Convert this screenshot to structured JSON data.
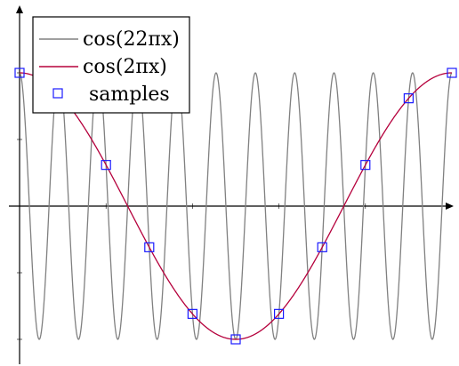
{
  "chart_data": {
    "type": "line",
    "title": "",
    "xlabel": "",
    "ylabel": "",
    "xlim": [
      0,
      1
    ],
    "ylim": [
      -1,
      1
    ],
    "grid": false,
    "legend_position": "top-left",
    "series": [
      {
        "name": "cos(22πx)",
        "kind": "line",
        "color": "#808080",
        "function": "cos(22*pi*x)",
        "x_range": [
          0,
          1
        ]
      },
      {
        "name": "cos(2πx)",
        "kind": "line",
        "color": "#b5003c",
        "function": "cos(2*pi*x)",
        "x_range": [
          0,
          1
        ]
      },
      {
        "name": "samples",
        "kind": "scatter",
        "marker": "square",
        "color": "#1a1aff",
        "x": [
          0,
          0.2,
          0.3,
          0.4,
          0.5,
          0.6,
          0.7,
          0.8,
          0.9,
          1.0
        ],
        "y": [
          1,
          0.309,
          -0.309,
          -0.809,
          -1,
          -0.809,
          -0.309,
          0.309,
          0.809,
          1
        ]
      }
    ]
  }
}
